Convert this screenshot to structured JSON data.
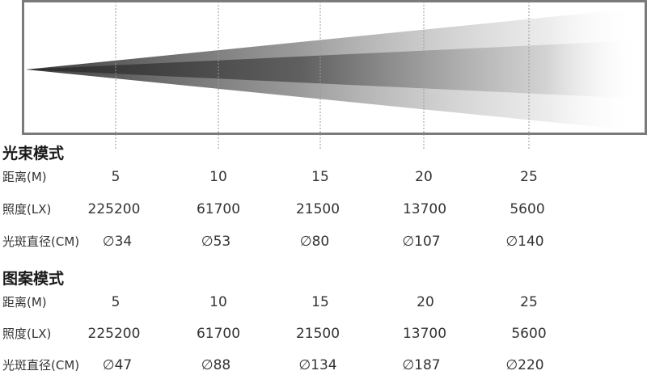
{
  "beam_sections": [
    {
      "title": "光束模式",
      "rows": [
        {
          "label": "距离(M)",
          "values": [
            "5",
            "10",
            "15",
            "20",
            "25"
          ]
        },
        {
          "label": "照度(LX)",
          "values": [
            "225200",
            "61700",
            "21500",
            "13700",
            "5600"
          ]
        },
        {
          "label": "光斑直径(CM)",
          "values": [
            "∅34",
            "∅53",
            "∅80",
            "∅107",
            "∅140"
          ]
        }
      ]
    },
    {
      "title": "图案模式",
      "rows": [
        {
          "label": "距离(M)",
          "values": [
            "5",
            "10",
            "15",
            "20",
            "25"
          ]
        },
        {
          "label": "照度(LX)",
          "values": [
            "225200",
            "61700",
            "21500",
            "13700",
            "5600"
          ]
        },
        {
          "label": "光斑直径(CM)",
          "values": [
            "∅47",
            "∅88",
            "∅134",
            "∅187",
            "∅220"
          ]
        }
      ]
    }
  ],
  "colors": {
    "frame": "#7a7a7a",
    "beam_outer": "#555555",
    "beam_inner": "#333333",
    "marker_line": "#9a9a9a"
  }
}
